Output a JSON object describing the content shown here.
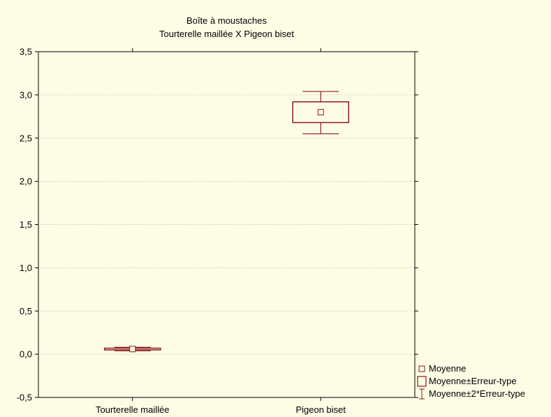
{
  "chart_data": {
    "type": "box",
    "title": "Boîte à moustaches",
    "subtitle": "Tourterelle maillée X Pigeon biset",
    "xlabel": "",
    "ylabel": "",
    "categories": [
      "Tourterelle maillée",
      "Pigeon biset"
    ],
    "mean": [
      0.06,
      2.8
    ],
    "mean_minus_se": [
      0.05,
      2.68
    ],
    "mean_plus_se": [
      0.07,
      2.92
    ],
    "mean_minus_2se": [
      0.04,
      2.55
    ],
    "mean_plus_2se": [
      0.08,
      3.04
    ],
    "ylim": [
      -0.5,
      3.5
    ],
    "yticks": [
      -0.5,
      0.0,
      0.5,
      1.0,
      1.5,
      2.0,
      2.5,
      3.0,
      3.5
    ],
    "ytick_labels": [
      "-0,5",
      "0,0",
      "0,5",
      "1,0",
      "1,5",
      "2,0",
      "2,5",
      "3,0",
      "3,5"
    ],
    "grid": true,
    "legend_position": "bottom-right",
    "legend": [
      {
        "symbol": "mean-marker",
        "label": "Moyenne"
      },
      {
        "symbol": "box",
        "label": "Moyenne±Erreur-type"
      },
      {
        "symbol": "whisker",
        "label": "Moyenne±2*Erreur-type"
      }
    ],
    "colors": {
      "box": "#8b1a1a",
      "background": "#fdfde6",
      "grid": "#b8b8b8",
      "axis": "#000000"
    }
  }
}
